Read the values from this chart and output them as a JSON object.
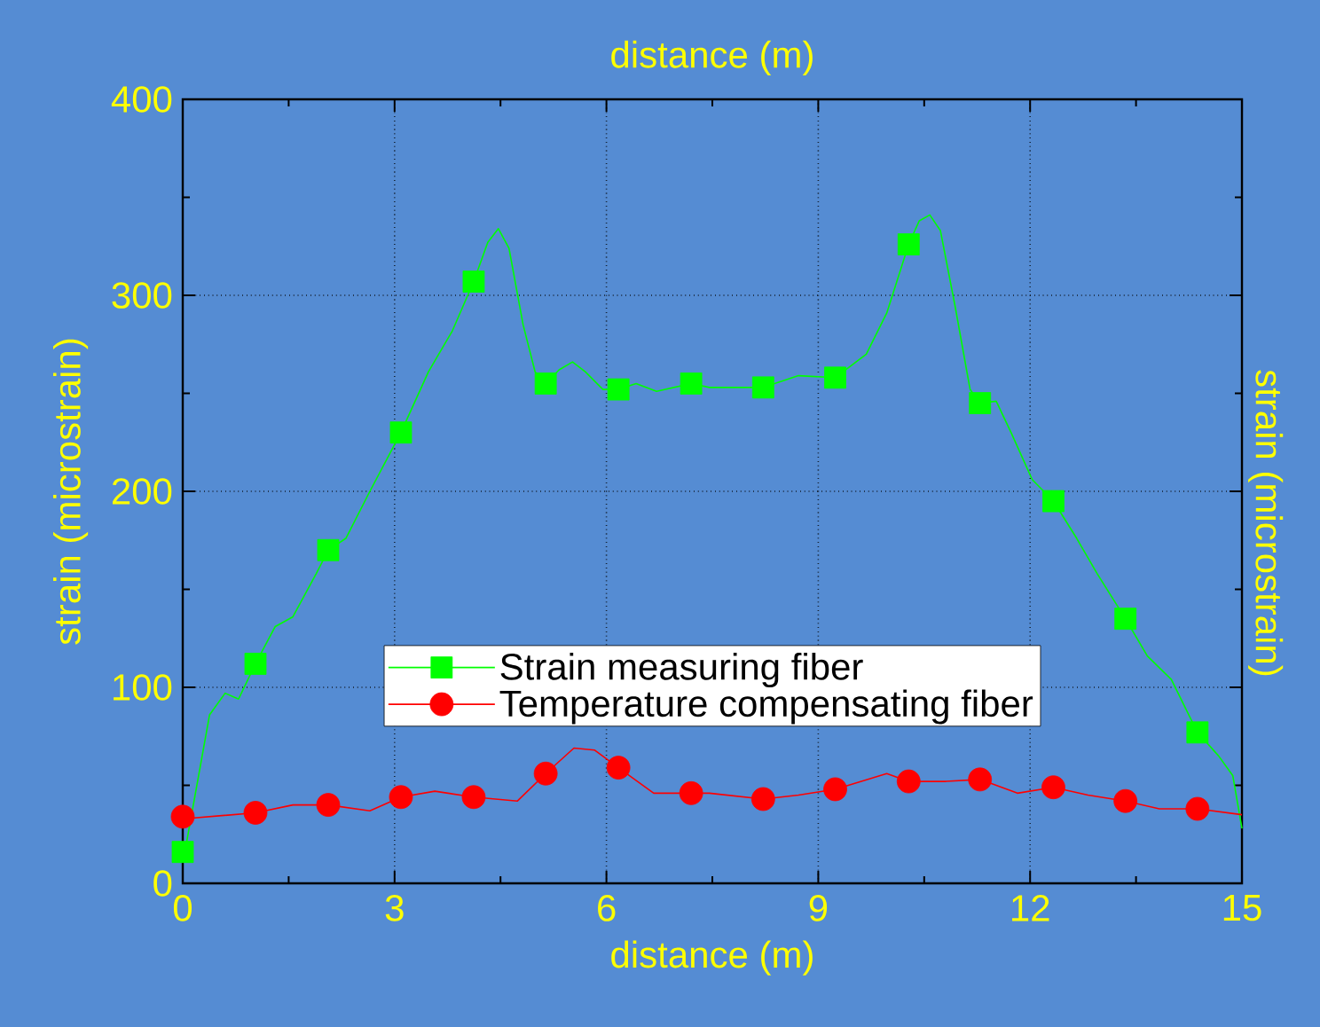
{
  "chart_data": {
    "type": "line",
    "xlabel": "distance (m)",
    "ylabel": "strain (microstrain)",
    "x2label": "distance (m)",
    "y2label": "strain (microstrain)",
    "xlim": [
      0,
      15
    ],
    "xticks": [
      0,
      3,
      6,
      9,
      12,
      15
    ],
    "ylim": [
      0,
      400
    ],
    "yticks": [
      0,
      100,
      200,
      300,
      400
    ],
    "grid": true,
    "legend": "bottom",
    "series": [
      {
        "color": "#00ff00",
        "x": [
          0.03,
          0.38,
          0.6,
          0.79,
          1.03,
          1.31,
          1.56,
          1.89,
          2.06,
          2.31,
          2.65,
          3.09,
          3.48,
          3.82,
          4.12,
          4.32,
          4.47,
          4.62,
          4.82,
          4.99,
          5.14,
          5.33,
          5.52,
          5.7,
          5.95,
          6.17,
          6.42,
          6.71,
          7.2,
          7.46,
          8.22,
          8.72,
          9.24,
          9.68,
          9.97,
          10.28,
          10.43,
          10.58,
          10.73,
          10.94,
          11.15,
          11.29,
          11.52,
          11.73,
          12.03,
          12.33,
          12.66,
          12.95,
          13.35,
          13.66,
          14.0,
          14.37,
          14.67,
          14.87,
          15
        ],
        "values": [
          16,
          86,
          97,
          94,
          112,
          131,
          136,
          158,
          170,
          176,
          200,
          230,
          261,
          282,
          307,
          327,
          334,
          324,
          285,
          261,
          255,
          262,
          266,
          261,
          252,
          252,
          255,
          251,
          255,
          253,
          253,
          259,
          258,
          270,
          291,
          326,
          338,
          341,
          333,
          294,
          252,
          245,
          246,
          230,
          206,
          195,
          176,
          158,
          135,
          116,
          104,
          77,
          65,
          55,
          28
        ]
      },
      {
        "type": "scatter",
        "name": "Strain measuring fiber",
        "color": "#00ff00",
        "marker": "square",
        "x": [
          0,
          1.03,
          2.06,
          3.09,
          4.12,
          5.14,
          6.17,
          7.2,
          8.22,
          9.24,
          10.28,
          11.29,
          12.33,
          13.35,
          14.37
        ],
        "values": [
          16,
          112,
          170,
          230,
          307,
          255,
          252,
          255,
          253,
          258,
          326,
          245,
          195,
          135,
          77
        ]
      },
      {
        "color": "#ff0000",
        "x": [
          0.05,
          1.03,
          1.56,
          2.06,
          2.65,
          3.09,
          3.57,
          4.12,
          4.74,
          5.14,
          5.54,
          5.83,
          6.17,
          6.67,
          7.2,
          7.46,
          8.22,
          8.72,
          9.24,
          9.97,
          10.28,
          10.81,
          11.29,
          11.82,
          12.33,
          12.82,
          13.35,
          13.83,
          14.37,
          15
        ],
        "values": [
          33,
          36,
          40,
          40,
          37,
          44,
          47,
          44,
          42,
          56,
          69,
          68,
          59,
          46,
          46,
          46,
          43,
          45,
          48,
          56,
          52,
          52,
          53,
          46,
          49,
          45,
          42,
          38,
          38,
          35
        ]
      },
      {
        "type": "scatter",
        "name": "Temperature compensating fiber",
        "color": "#ff0000",
        "marker": "circle",
        "x": [
          0,
          1.03,
          2.06,
          3.09,
          4.12,
          5.14,
          6.17,
          7.2,
          8.22,
          9.24,
          10.28,
          11.29,
          12.33,
          13.35,
          14.37
        ],
        "values": [
          34,
          36,
          40,
          44,
          44,
          56,
          59,
          46,
          43,
          48,
          52,
          53,
          49,
          42,
          38
        ]
      }
    ]
  }
}
